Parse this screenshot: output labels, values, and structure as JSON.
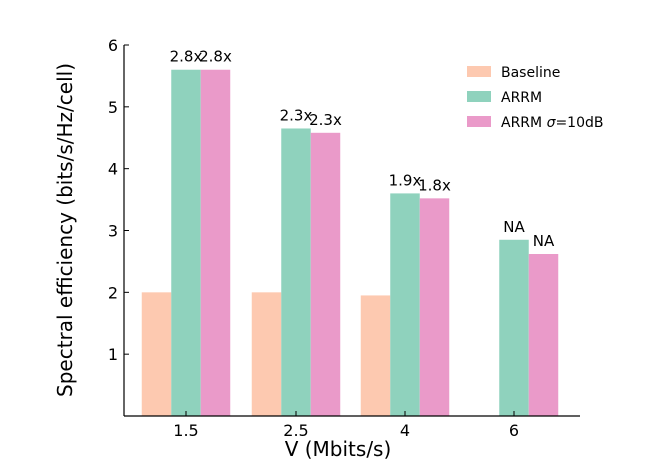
{
  "chart_data": {
    "type": "bar",
    "title": "",
    "xlabel": "V (Mbits/s)",
    "ylabel": "Spectral efficiency (bits/s/Hz/cell)",
    "ylim": [
      0,
      6
    ],
    "yticks": [
      "1",
      "2",
      "3",
      "4",
      "5",
      "6"
    ],
    "categories": [
      "1.5",
      "2.5",
      "4",
      "6"
    ],
    "legend_position": "top-right",
    "grid": false,
    "series": [
      {
        "name": "Baseline",
        "color": "#fdc9b0",
        "values": [
          2.0,
          2.0,
          1.95,
          null
        ],
        "labels": [
          "",
          "",
          "",
          ""
        ]
      },
      {
        "name": "ARRM",
        "color": "#8fd2bd",
        "values": [
          5.6,
          4.65,
          3.6,
          2.85
        ],
        "labels": [
          "2.8x",
          "2.3x",
          "1.9x",
          "NA"
        ]
      },
      {
        "name_prefix": "ARRM ",
        "name_sigma": "σ",
        "name_suffix": "=10dB",
        "color": "#ea9ac9",
        "values": [
          5.6,
          4.58,
          3.52,
          2.62
        ],
        "labels": [
          "2.8x",
          "2.3x",
          "1.8x",
          "NA"
        ]
      }
    ]
  }
}
